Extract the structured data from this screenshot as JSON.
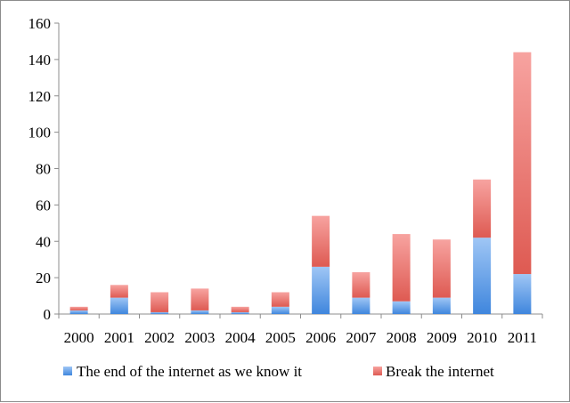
{
  "chart_data": {
    "type": "bar",
    "stacked": true,
    "categories": [
      "2000",
      "2001",
      "2002",
      "2003",
      "2004",
      "2005",
      "2006",
      "2007",
      "2008",
      "2009",
      "2010",
      "2011"
    ],
    "series": [
      {
        "name": "The end of the internet as we know it",
        "color": "#5f9ee8",
        "values": [
          2,
          9,
          1,
          2,
          1,
          4,
          26,
          9,
          7,
          9,
          42,
          22
        ]
      },
      {
        "name": "Break the internet",
        "color": "#e8706a",
        "values": [
          2,
          7,
          11,
          12,
          3,
          8,
          28,
          14,
          37,
          32,
          32,
          122
        ]
      }
    ],
    "ylim": [
      0,
      160
    ],
    "yticks": [
      0,
      20,
      40,
      60,
      80,
      100,
      120,
      140,
      160
    ],
    "grid": false,
    "legend_position": "bottom",
    "title": "",
    "xlabel": "",
    "ylabel": ""
  }
}
